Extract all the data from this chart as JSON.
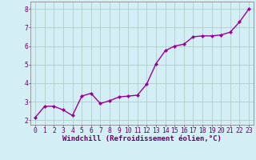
{
  "x": [
    0,
    1,
    2,
    3,
    4,
    5,
    6,
    7,
    8,
    9,
    10,
    11,
    12,
    13,
    14,
    15,
    16,
    17,
    18,
    19,
    20,
    21,
    22,
    23
  ],
  "y": [
    2.15,
    2.75,
    2.75,
    2.55,
    2.25,
    3.3,
    3.45,
    2.9,
    3.05,
    3.25,
    3.3,
    3.35,
    3.95,
    5.05,
    5.75,
    6.0,
    6.1,
    6.5,
    6.55,
    6.55,
    6.6,
    6.75,
    7.3,
    8.0
  ],
  "line_color": "#990099",
  "marker": "D",
  "marker_size": 2.2,
  "bg_color": "#d4eef5",
  "grid_color": "#b0cccc",
  "xlabel": "Windchill (Refroidissement éolien,°C)",
  "ylabel_ticks": [
    2,
    3,
    4,
    5,
    6,
    7,
    8
  ],
  "xlim": [
    -0.5,
    23.5
  ],
  "ylim": [
    1.75,
    8.4
  ],
  "label_color": "#660066",
  "axis_color": "#888888",
  "tick_color": "#660066",
  "xlabel_fontsize": 6.5,
  "tick_fontsize": 5.8,
  "linewidth": 1.0
}
